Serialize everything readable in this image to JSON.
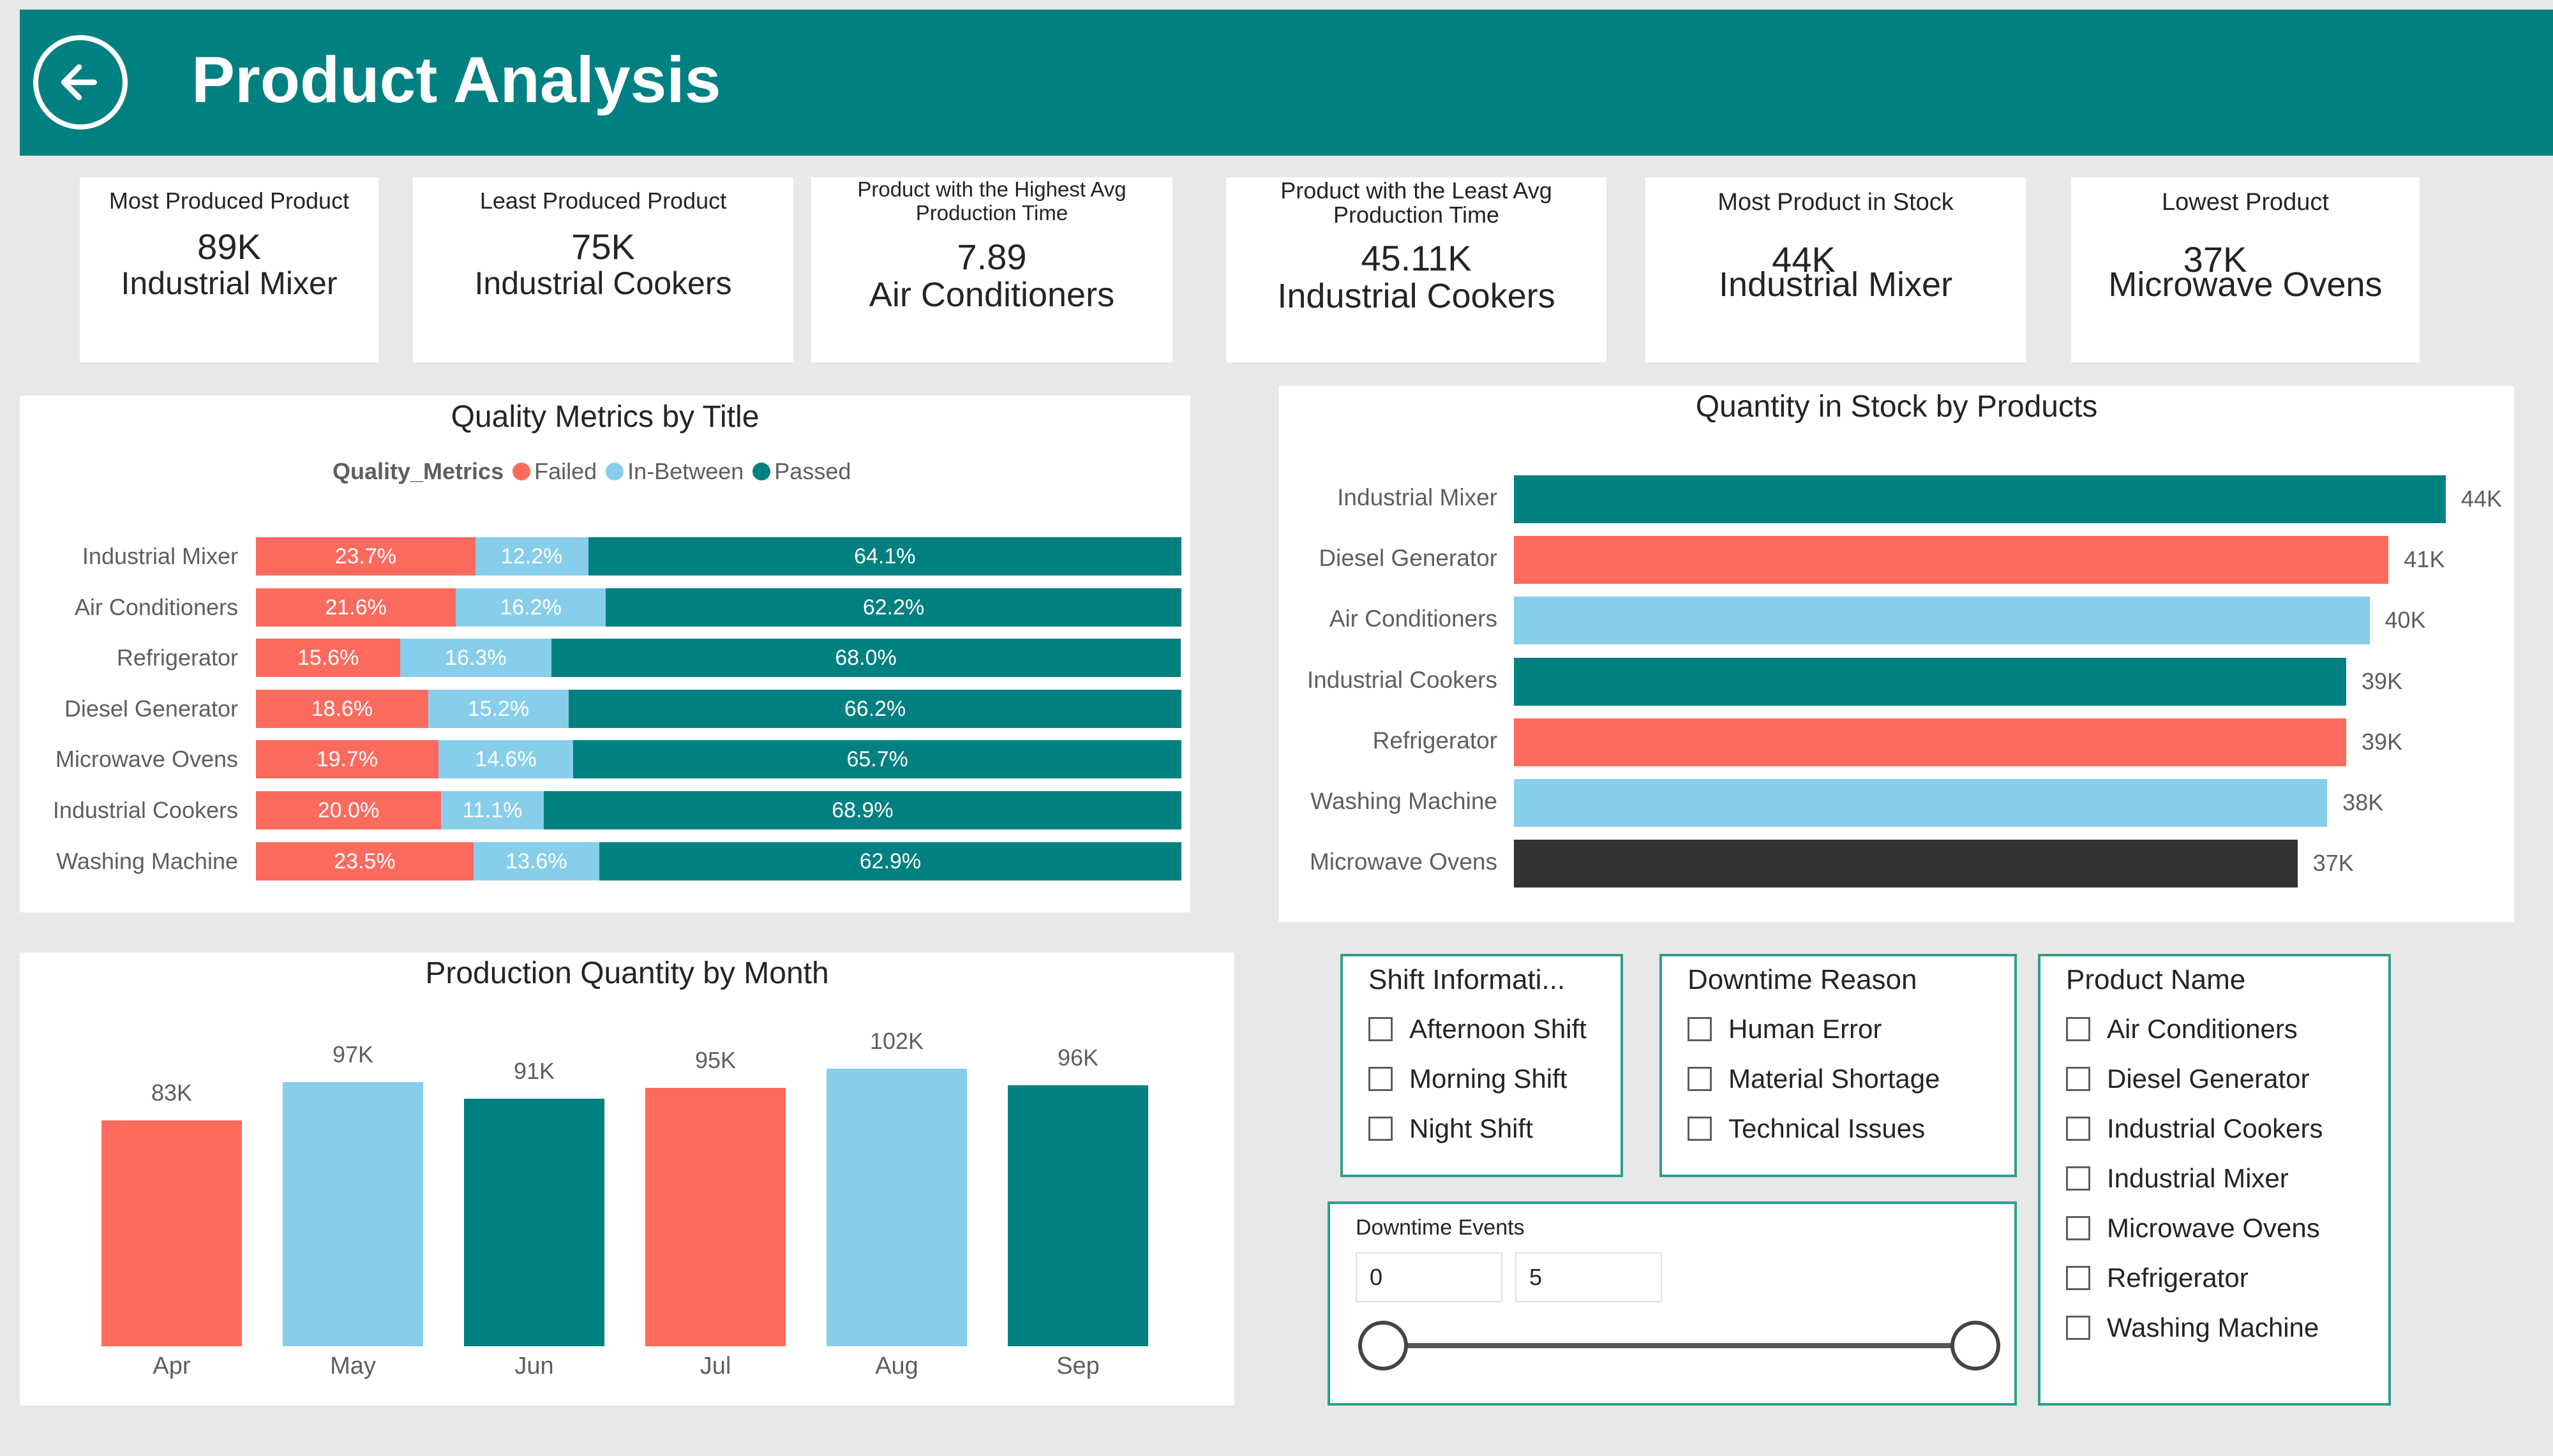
{
  "header": {
    "title": "Product Analysis",
    "back_icon": "back-arrow-icon"
  },
  "kpis": [
    {
      "label": "Most Produced Product",
      "value": "89K",
      "name": "Industrial Mixer"
    },
    {
      "label": "Least Produced Product",
      "value": "75K",
      "name": "Industrial Cookers"
    },
    {
      "label": "Product with the Highest Avg Production Time",
      "value": "7.89",
      "name": "Air Conditioners"
    },
    {
      "label": "Product with the Least Avg Production Time",
      "value": "45.11K",
      "name": "Industrial Cookers"
    },
    {
      "label": "Most Product in Stock",
      "value": "44K",
      "name": "Industrial Mixer"
    },
    {
      "label": "Lowest Product",
      "value": "37K",
      "name": "Microwave Ovens"
    }
  ],
  "colors": {
    "teal": "#008080",
    "failed": "#fd6b5e",
    "in_between": "#87ceeb",
    "passed": "#008080",
    "dark": "#333333",
    "slicer_border": "#2e9e8c"
  },
  "quality": {
    "title": "Quality Metrics by Title",
    "legend_title": "Quality_Metrics",
    "legend": [
      "Failed",
      "In-Between",
      "Passed"
    ],
    "rows": [
      {
        "product": "Industrial Mixer",
        "failed": 23.7,
        "in_between": 12.2,
        "passed": 64.1,
        "failed_label": "23.7%",
        "in_between_label": "12.2%",
        "passed_label": "64.1%"
      },
      {
        "product": "Air Conditioners",
        "failed": 21.6,
        "in_between": 16.2,
        "passed": 62.2,
        "failed_label": "21.6%",
        "in_between_label": "16.2%",
        "passed_label": "62.2%"
      },
      {
        "product": "Refrigerator",
        "failed": 15.6,
        "in_between": 16.3,
        "passed": 68.0,
        "failed_label": "15.6%",
        "in_between_label": "16.3%",
        "passed_label": "68.0%"
      },
      {
        "product": "Diesel Generator",
        "failed": 18.6,
        "in_between": 15.2,
        "passed": 66.2,
        "failed_label": "18.6%",
        "in_between_label": "15.2%",
        "passed_label": "66.2%"
      },
      {
        "product": "Microwave Ovens",
        "failed": 19.7,
        "in_between": 14.6,
        "passed": 65.7,
        "failed_label": "19.7%",
        "in_between_label": "14.6%",
        "passed_label": "65.7%"
      },
      {
        "product": "Industrial Cookers",
        "failed": 20.0,
        "in_between": 11.1,
        "passed": 68.9,
        "failed_label": "20.0%",
        "in_between_label": "11.1%",
        "passed_label": "68.9%"
      },
      {
        "product": "Washing Machine",
        "failed": 23.5,
        "in_between": 13.6,
        "passed": 62.9,
        "failed_label": "23.5%",
        "in_between_label": "13.6%",
        "passed_label": "62.9%"
      }
    ]
  },
  "stock": {
    "title": "Quantity in Stock by Products",
    "xmax": 44,
    "bars": [
      {
        "product": "Industrial Mixer",
        "value": 44,
        "label": "44K",
        "color": "#008080"
      },
      {
        "product": "Diesel Generator",
        "value": 41.3,
        "label": "41K",
        "color": "#fd6b5e"
      },
      {
        "product": "Air Conditioners",
        "value": 40.4,
        "label": "40K",
        "color": "#87ceeb"
      },
      {
        "product": "Industrial Cookers",
        "value": 39.3,
        "label": "39K",
        "color": "#008080"
      },
      {
        "product": "Refrigerator",
        "value": 39.3,
        "label": "39K",
        "color": "#fd6b5e"
      },
      {
        "product": "Washing Machine",
        "value": 38.4,
        "label": "38K",
        "color": "#87ceeb"
      },
      {
        "product": "Microwave Ovens",
        "value": 37.0,
        "label": "37K",
        "color": "#333333"
      }
    ]
  },
  "production": {
    "title": "Production Quantity by Month",
    "ymax": 102,
    "bars": [
      {
        "month": "Apr",
        "value": 83,
        "label": "83K",
        "color": "#fd6b5e"
      },
      {
        "month": "May",
        "value": 97,
        "label": "97K",
        "color": "#87ceeb"
      },
      {
        "month": "Jun",
        "value": 91,
        "label": "91K",
        "color": "#008080"
      },
      {
        "month": "Jul",
        "value": 95,
        "label": "95K",
        "color": "#fd6b5e"
      },
      {
        "month": "Aug",
        "value": 102,
        "label": "102K",
        "color": "#87ceeb"
      },
      {
        "month": "Sep",
        "value": 96,
        "label": "96K",
        "color": "#008080"
      }
    ]
  },
  "chart_data": [
    {
      "type": "bar",
      "title": "Quality Metrics by Title",
      "orientation": "horizontal-stacked-100",
      "categories": [
        "Industrial Mixer",
        "Air Conditioners",
        "Refrigerator",
        "Diesel Generator",
        "Microwave Ovens",
        "Industrial Cookers",
        "Washing Machine"
      ],
      "series": [
        {
          "name": "Failed",
          "values": [
            23.7,
            21.6,
            15.6,
            18.6,
            19.7,
            20.0,
            23.5
          ]
        },
        {
          "name": "In-Between",
          "values": [
            12.2,
            16.2,
            16.3,
            15.2,
            14.6,
            11.1,
            13.6
          ]
        },
        {
          "name": "Passed",
          "values": [
            64.1,
            62.2,
            68.0,
            66.2,
            65.7,
            68.9,
            62.9
          ]
        }
      ],
      "legend": "top"
    },
    {
      "type": "bar",
      "title": "Quantity in Stock by Products",
      "orientation": "horizontal",
      "categories": [
        "Industrial Mixer",
        "Diesel Generator",
        "Air Conditioners",
        "Industrial Cookers",
        "Refrigerator",
        "Washing Machine",
        "Microwave Ovens"
      ],
      "values": [
        44,
        41,
        40,
        39,
        39,
        38,
        37
      ],
      "unit": "K"
    },
    {
      "type": "bar",
      "title": "Production Quantity by Month",
      "categories": [
        "Apr",
        "May",
        "Jun",
        "Jul",
        "Aug",
        "Sep"
      ],
      "values": [
        83,
        97,
        91,
        95,
        102,
        96
      ],
      "unit": "K"
    }
  ],
  "slicers": {
    "shift": {
      "title": "Shift Informati...",
      "items": [
        "Afternoon Shift",
        "Morning Shift",
        "Night Shift"
      ]
    },
    "downtime": {
      "title": "Downtime Reason",
      "items": [
        "Human Error",
        "Material Shortage",
        "Technical Issues"
      ]
    },
    "product": {
      "title": "Product Name",
      "items": [
        "Air Conditioners",
        "Diesel Generator",
        "Industrial Cookers",
        "Industrial Mixer",
        "Microwave Ovens",
        "Refrigerator",
        "Washing Machine"
      ]
    },
    "events": {
      "title": "Downtime Events",
      "min": "0",
      "max": "5"
    }
  }
}
